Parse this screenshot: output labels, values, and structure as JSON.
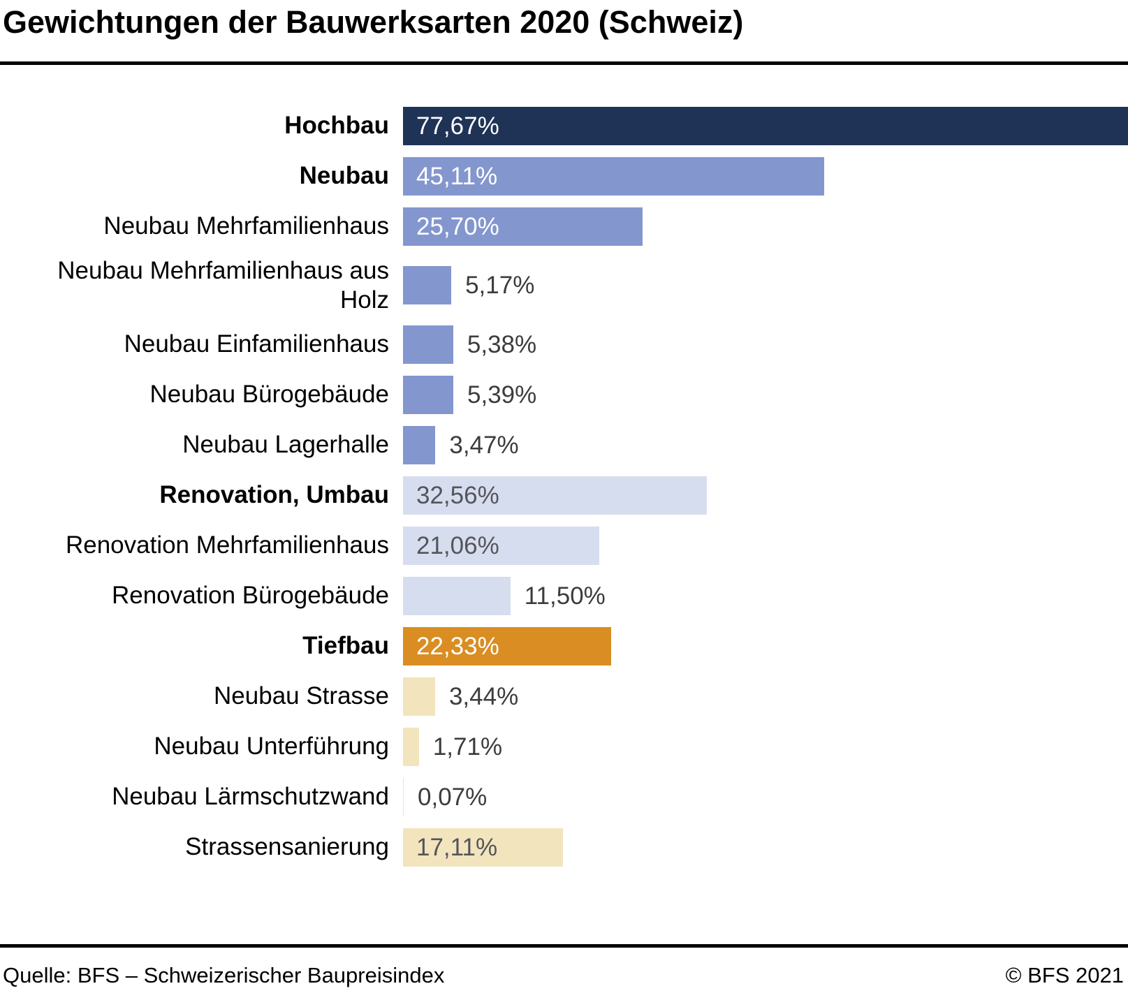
{
  "title": "Gewichtungen der Bauwerksarten 2020 (Schweiz)",
  "footer": {
    "source": "Quelle: BFS – Schweizerischer Baupreisindex",
    "copyright": "© BFS 2021"
  },
  "colors": {
    "navy": "#1f3356",
    "periwinkle": "#8496ce",
    "lavender": "#d6ddee",
    "orange": "#d98d22",
    "cream": "#f2e4bd",
    "value_light": "#ffffff",
    "value_gray": "#54555b",
    "value_dark": "#3c3c3e",
    "rule": "#000000"
  },
  "chart_data": {
    "type": "bar",
    "orientation": "horizontal",
    "title": "Gewichtungen der Bauwerksarten 2020 (Schweiz)",
    "xlabel": "",
    "ylabel": "",
    "unit": "%",
    "xlim": [
      0,
      77.67
    ],
    "grid": false,
    "legend": false,
    "value_labels_shown": true,
    "max_value": 77.67,
    "items": [
      {
        "label": "Hochbau",
        "bold": true,
        "value": 77.67,
        "value_label": "77,67%",
        "color_key": "navy",
        "value_inside": true,
        "value_color_key": "value_light"
      },
      {
        "label": "Neubau",
        "bold": true,
        "value": 45.11,
        "value_label": "45,11%",
        "color_key": "periwinkle",
        "value_inside": true,
        "value_color_key": "value_light"
      },
      {
        "label": "Neubau Mehrfamilienhaus",
        "bold": false,
        "value": 25.7,
        "value_label": "25,70%",
        "color_key": "periwinkle",
        "value_inside": true,
        "value_color_key": "value_light"
      },
      {
        "label": "Neubau Mehrfamilienhaus aus\nHolz",
        "bold": false,
        "value": 5.17,
        "value_label": "5,17%",
        "color_key": "periwinkle",
        "value_inside": false,
        "value_color_key": "value_dark"
      },
      {
        "label": "Neubau Einfamilienhaus",
        "bold": false,
        "value": 5.38,
        "value_label": "5,38%",
        "color_key": "periwinkle",
        "value_inside": false,
        "value_color_key": "value_dark"
      },
      {
        "label": "Neubau Bürogebäude",
        "bold": false,
        "value": 5.39,
        "value_label": "5,39%",
        "color_key": "periwinkle",
        "value_inside": false,
        "value_color_key": "value_dark"
      },
      {
        "label": "Neubau Lagerhalle",
        "bold": false,
        "value": 3.47,
        "value_label": "3,47%",
        "color_key": "periwinkle",
        "value_inside": false,
        "value_color_key": "value_dark"
      },
      {
        "label": "Renovation, Umbau",
        "bold": true,
        "value": 32.56,
        "value_label": "32,56%",
        "color_key": "lavender",
        "value_inside": true,
        "value_color_key": "value_gray"
      },
      {
        "label": "Renovation Mehrfamilienhaus",
        "bold": false,
        "value": 21.06,
        "value_label": "21,06%",
        "color_key": "lavender",
        "value_inside": true,
        "value_color_key": "value_gray"
      },
      {
        "label": "Renovation Bürogebäude",
        "bold": false,
        "value": 11.5,
        "value_label": "11,50%",
        "color_key": "lavender",
        "value_inside": false,
        "value_color_key": "value_dark"
      },
      {
        "label": "Tiefbau",
        "bold": true,
        "value": 22.33,
        "value_label": "22,33%",
        "color_key": "orange",
        "value_inside": true,
        "value_color_key": "value_light"
      },
      {
        "label": "Neubau Strasse",
        "bold": false,
        "value": 3.44,
        "value_label": "3,44%",
        "color_key": "cream",
        "value_inside": false,
        "value_color_key": "value_dark"
      },
      {
        "label": "Neubau Unterführung",
        "bold": false,
        "value": 1.71,
        "value_label": "1,71%",
        "color_key": "cream",
        "value_inside": false,
        "value_color_key": "value_dark"
      },
      {
        "label": "Neubau Lärmschutzwand",
        "bold": false,
        "value": 0.07,
        "value_label": "0,07%",
        "color_key": "cream",
        "value_inside": false,
        "value_color_key": "value_dark"
      },
      {
        "label": "Strassensanierung",
        "bold": false,
        "value": 17.11,
        "value_label": "17,11%",
        "color_key": "cream",
        "value_inside": true,
        "value_color_key": "value_gray"
      }
    ]
  }
}
